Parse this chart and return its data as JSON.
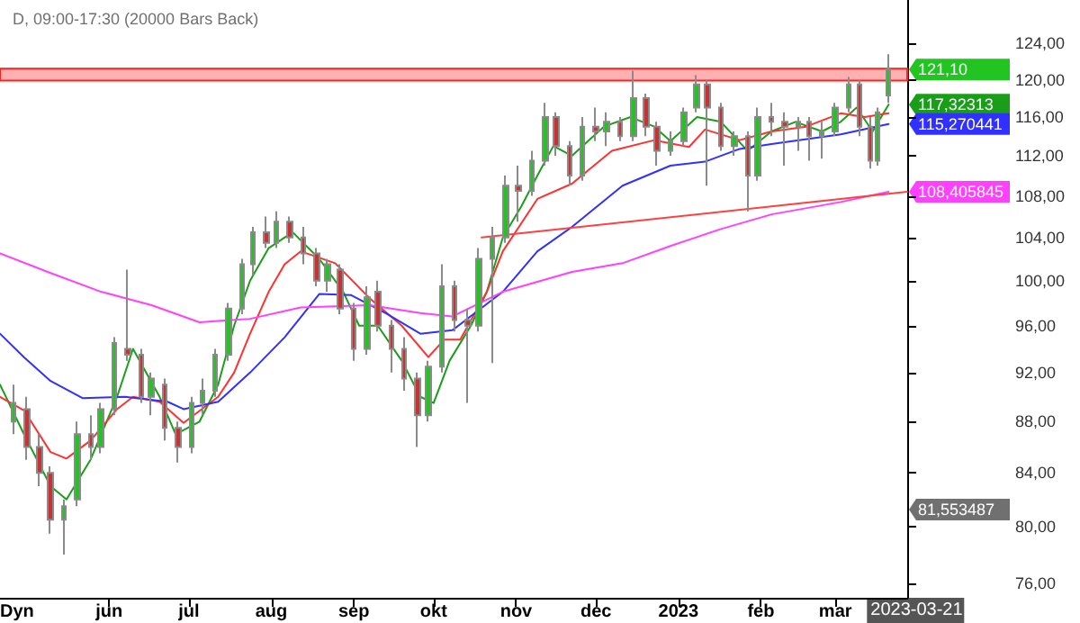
{
  "chart_data": {
    "type": "candlestick",
    "title": "D, 09:00-17:30 (20000 Bars Back)",
    "log": true,
    "marker": "none",
    "x": [
      "2022-04-26",
      "2022-05-01",
      "2022-05-06",
      "2022-05-10",
      "2022-05-15",
      "2022-05-20",
      "2022-05-25",
      "2022-05-29",
      "2022-06-03",
      "2022-06-08",
      "2022-06-13",
      "2022-06-17",
      "2022-06-22",
      "2022-06-27",
      "2022-07-02",
      "2022-07-06",
      "2022-07-11",
      "2022-07-16",
      "2022-07-21",
      "2022-07-25",
      "2022-07-30",
      "2022-08-03",
      "2022-08-08",
      "2022-08-13",
      "2022-08-18",
      "2022-08-22",
      "2022-08-27",
      "2022-09-01",
      "2022-09-06",
      "2022-09-10",
      "2022-09-15",
      "2022-09-20",
      "2022-09-25",
      "2022-09-29",
      "2022-10-04",
      "2022-10-09",
      "2022-10-14",
      "2022-10-18",
      "2022-10-23",
      "2022-10-28",
      "2022-11-02",
      "2022-11-07",
      "2022-11-12",
      "2022-11-16",
      "2022-11-21",
      "2022-11-26",
      "2022-12-01",
      "2022-12-05",
      "2022-12-10",
      "2022-12-15",
      "2022-12-20",
      "2022-12-24",
      "2022-12-29",
      "2023-01-03",
      "2023-01-08",
      "2023-01-12",
      "2023-01-17",
      "2023-01-22",
      "2023-01-27",
      "2023-01-31",
      "2023-02-05",
      "2023-02-10",
      "2023-02-15",
      "2023-02-19",
      "2023-02-24",
      "2023-03-01",
      "2023-03-06",
      "2023-03-10",
      "2023-03-14",
      "2023-03-17",
      "2023-03-21"
    ],
    "ohlc": [
      [
        88,
        91,
        87,
        89.5
      ],
      [
        89,
        90,
        85,
        86
      ],
      [
        86,
        87,
        83,
        84
      ],
      [
        84,
        84.5,
        79.5,
        80.5
      ],
      [
        80.5,
        82,
        78,
        81.5
      ],
      [
        82,
        88,
        81.5,
        87
      ],
      [
        87,
        88.5,
        85,
        86
      ],
      [
        86,
        89.5,
        85.5,
        89
      ],
      [
        89,
        95,
        88.5,
        94.5
      ],
      [
        94,
        101,
        93,
        93.5
      ],
      [
        93.5,
        94,
        89.5,
        90
      ],
      [
        90,
        92,
        88.5,
        91.5
      ],
      [
        91,
        91.5,
        86.5,
        87.5
      ],
      [
        87.5,
        88,
        84.8,
        86
      ],
      [
        86,
        90,
        85.5,
        89.5
      ],
      [
        89.5,
        91.5,
        88.5,
        90.5
      ],
      [
        90.5,
        94,
        90,
        93.5
      ],
      [
        93.5,
        98,
        93,
        97.5
      ],
      [
        97.5,
        102,
        97,
        101.5
      ],
      [
        101.5,
        105,
        100.5,
        104.5
      ],
      [
        104.5,
        106,
        103,
        103.5
      ],
      [
        103.5,
        106.5,
        103,
        105.5
      ],
      [
        105.5,
        106,
        103.5,
        104
      ],
      [
        104,
        105,
        101.5,
        102.5
      ],
      [
        102.5,
        103,
        99.5,
        100
      ],
      [
        100,
        102,
        99,
        101.5
      ],
      [
        101,
        101.5,
        97,
        97.5
      ],
      [
        97.5,
        98,
        93,
        94
      ],
      [
        94,
        99.5,
        93.5,
        98.5
      ],
      [
        99,
        100,
        95.5,
        96
      ],
      [
        96,
        96.5,
        92,
        94
      ],
      [
        94,
        95,
        90.5,
        91.5
      ],
      [
        91.5,
        92,
        86,
        88.5
      ],
      [
        88.5,
        93,
        88,
        92.5
      ],
      [
        92.5,
        101.5,
        92,
        99.5
      ],
      [
        99.5,
        100,
        95.5,
        96.5
      ],
      [
        96.5,
        97.5,
        89.5,
        96
      ],
      [
        96,
        103,
        95.5,
        102
      ],
      [
        102,
        105,
        92.8,
        104
      ],
      [
        104,
        110,
        103.5,
        109
      ],
      [
        109,
        111,
        105.5,
        108.5
      ],
      [
        108.5,
        112.5,
        108,
        111.5
      ],
      [
        111.5,
        117.5,
        111,
        116
      ],
      [
        116,
        116.5,
        112,
        113
      ],
      [
        113,
        113.5,
        109,
        110
      ],
      [
        110,
        116,
        109.5,
        115
      ],
      [
        115,
        117,
        113.5,
        114.5
      ],
      [
        114.5,
        116.5,
        113,
        115.5
      ],
      [
        115.5,
        116,
        113.5,
        114
      ],
      [
        114,
        121,
        113.5,
        118
      ],
      [
        118,
        118.5,
        114,
        115
      ],
      [
        115,
        115.5,
        111,
        112.5
      ],
      [
        112.5,
        114.5,
        112,
        113.5
      ],
      [
        113.5,
        117,
        113,
        116.5
      ],
      [
        117,
        120.5,
        116.5,
        119.5
      ],
      [
        119.5,
        120,
        109,
        117
      ],
      [
        117,
        117.5,
        112.5,
        113
      ],
      [
        113,
        114.5,
        112,
        114
      ],
      [
        114,
        114.5,
        106.5,
        110
      ],
      [
        110,
        117,
        109.5,
        116
      ],
      [
        116,
        117.5,
        114,
        115.5
      ],
      [
        115.5,
        116.5,
        111,
        115
      ],
      [
        115,
        116,
        112.5,
        115.5
      ],
      [
        115.5,
        116,
        111.5,
        114
      ],
      [
        114,
        115.5,
        111.7,
        114.5
      ],
      [
        114.5,
        117.5,
        114,
        117
      ],
      [
        117,
        120.3,
        116.5,
        119.5
      ],
      [
        119.5,
        120,
        114,
        115
      ],
      [
        115,
        116,
        110.7,
        111.5
      ],
      [
        111.5,
        117,
        111,
        116.5
      ],
      [
        118.3,
        122.8,
        117.5,
        121.1
      ]
    ],
    "colors": [
      "#22c422",
      "#c83232",
      "#c83232",
      "#c83232",
      "#22c422",
      "#22c422",
      "#c83232",
      "#22c422",
      "#22c422",
      "#c83232",
      "#c83232",
      "#22c422",
      "#c83232",
      "#c83232",
      "#22c422",
      "#22c422",
      "#22c422",
      "#22c422",
      "#22c422",
      "#22c422",
      "#c83232",
      "#22c422",
      "#c83232",
      "#c83232",
      "#c83232",
      "#22c422",
      "#c83232",
      "#c83232",
      "#22c422",
      "#c83232",
      "#c83232",
      "#c83232",
      "#c83232",
      "#22c422",
      "#22c422",
      "#c83232",
      "#c83232",
      "#22c422",
      "#22c422",
      "#22c422",
      "#c83232",
      "#22c422",
      "#22c422",
      "#c83232",
      "#c83232",
      "#22c422",
      "#c83232",
      "#22c422",
      "#c83232",
      "#22c422",
      "#c83232",
      "#c83232",
      "#22c422",
      "#22c422",
      "#22c422",
      "#c83232",
      "#c83232",
      "#22c422",
      "#c83232",
      "#22c422",
      "#c83232",
      "#c83232",
      "#22c422",
      "#c83232",
      "#22c422",
      "#22c422",
      "#22c422",
      "#c83232",
      "#c83232",
      "#22c422",
      "#22c422"
    ],
    "series": [
      {
        "type": "line",
        "color": "#1a9e1a",
        "x": [
          "2022-04-21",
          "2022-04-30",
          "2022-05-10",
          "2022-05-16",
          "2022-05-25",
          "2022-06-04",
          "2022-06-10",
          "2022-06-20",
          "2022-06-26",
          "2022-07-05",
          "2022-07-12",
          "2022-07-18",
          "2022-07-24",
          "2022-07-31",
          "2022-08-09",
          "2022-08-19",
          "2022-08-28",
          "2022-09-03",
          "2022-09-10",
          "2022-09-19",
          "2022-09-26",
          "2022-10-01",
          "2022-10-07",
          "2022-10-15",
          "2022-10-21",
          "2022-10-27",
          "2022-11-03",
          "2022-11-09",
          "2022-11-15",
          "2022-11-22",
          "2022-11-28",
          "2022-12-04",
          "2022-12-14",
          "2022-12-23",
          "2022-12-29",
          "2023-01-08",
          "2023-01-17",
          "2023-01-27",
          "2023-02-05",
          "2023-02-14",
          "2023-02-24",
          "2023-03-03",
          "2023-03-09",
          "2023-03-15",
          "2023-03-21"
        ],
        "values": [
          91,
          87,
          83,
          82,
          85,
          90,
          94,
          90,
          87,
          88,
          91,
          96,
          100,
          103,
          104.5,
          102,
          99,
          96,
          96,
          93,
          90,
          89.5,
          93,
          96,
          99,
          104,
          107,
          110,
          113,
          112,
          113.5,
          115,
          116,
          115,
          113.5,
          116,
          115.5,
          112.5,
          114.5,
          115.5,
          114.5,
          115.5,
          117,
          114.5,
          117.32313
        ]
      },
      {
        "type": "line",
        "color": "#ff3030",
        "x": [
          "2022-04-21",
          "2022-04-30",
          "2022-05-10",
          "2022-05-16",
          "2022-05-25",
          "2022-06-04",
          "2022-06-10",
          "2022-06-20",
          "2022-06-29",
          "2022-07-12",
          "2022-07-18",
          "2022-07-24",
          "2022-07-31",
          "2022-08-06",
          "2022-08-12",
          "2022-08-25",
          "2022-09-07",
          "2022-09-19",
          "2022-09-29",
          "2022-10-05",
          "2022-10-11",
          "2022-10-21",
          "2022-10-27",
          "2022-11-09",
          "2022-11-22",
          "2022-12-07",
          "2022-12-23",
          "2023-01-05",
          "2023-01-11",
          "2023-01-24",
          "2023-02-05",
          "2023-02-18",
          "2023-03-03",
          "2023-03-12",
          "2023-03-21"
        ],
        "values": [
          90,
          88.9,
          85.6,
          85.1,
          86.5,
          89,
          90,
          89.6,
          87.9,
          90,
          92,
          95.3,
          99,
          101.5,
          102.7,
          101.6,
          98.4,
          96,
          93.3,
          94.8,
          94.8,
          99,
          102.7,
          107.7,
          109.2,
          112.5,
          113.6,
          112.9,
          114.7,
          113.6,
          114.5,
          115,
          116.4,
          116,
          116.4
        ]
      },
      {
        "type": "line",
        "color": "#3030ff",
        "x": [
          "2022-04-21",
          "2022-04-30",
          "2022-05-10",
          "2022-05-22",
          "2022-06-07",
          "2022-06-23",
          "2022-06-29",
          "2022-07-12",
          "2022-07-24",
          "2022-08-06",
          "2022-08-19",
          "2022-08-31",
          "2022-09-13",
          "2022-09-26",
          "2022-10-08",
          "2022-10-27",
          "2022-11-09",
          "2022-11-22",
          "2022-12-11",
          "2022-12-29",
          "2023-01-11",
          "2023-01-24",
          "2023-02-05",
          "2023-03-03",
          "2023-03-21"
        ],
        "values": [
          95.3,
          93.3,
          91.3,
          89.9,
          90,
          89.6,
          89,
          89.6,
          92,
          95,
          98.8,
          98.7,
          97.1,
          95.3,
          95.6,
          99,
          102.7,
          105,
          109,
          111,
          111.4,
          112.7,
          113.2,
          114.2,
          115.270441
        ]
      },
      {
        "type": "line",
        "color": "#ff40ff",
        "x": [
          "2022-04-21",
          "2022-05-10",
          "2022-05-29",
          "2022-06-17",
          "2022-07-05",
          "2022-07-24",
          "2022-08-12",
          "2022-09-07",
          "2022-09-26",
          "2022-10-08",
          "2022-10-27",
          "2022-11-22",
          "2022-12-11",
          "2022-12-29",
          "2023-01-17",
          "2023-02-05",
          "2023-03-03",
          "2023-03-21"
        ],
        "values": [
          102.5,
          100.7,
          99,
          97.8,
          96.3,
          96.6,
          97.6,
          97.8,
          97.1,
          96.8,
          99,
          100.8,
          101.6,
          103.2,
          104.8,
          106.2,
          107.4,
          108.405845
        ]
      },
      {
        "type": "line",
        "color": "#ff4040",
        "x": [
          "2022-10-19",
          "2023-03-28"
        ],
        "values": [
          104,
          108.4
        ]
      }
    ],
    "bands": [
      {
        "axis": "y",
        "from": 119.9,
        "to": 121.2,
        "color": "#ffb0b0"
      }
    ],
    "annotations": [
      {
        "text": "121,10",
        "x": "2023-03-21",
        "y": 121.1
      },
      {
        "text": "117,32313",
        "x": "2023-03-21",
        "y": 117.32313
      },
      {
        "text": "115,270441",
        "x": "2023-03-21",
        "y": 115.270441
      },
      {
        "text": "108,405845",
        "x": "2023-03-21",
        "y": 108.405845
      },
      "81,553487",
      "2023-03-21",
      "Dyn"
    ],
    "xlim": [
      "2022-04-21",
      "2023-03-28"
    ],
    "xticks": [
      {
        "value": "2022-06-01",
        "label": "jun"
      },
      {
        "value": "2022-07-01",
        "label": "jul"
      },
      {
        "value": "2022-08-01",
        "label": "aug"
      },
      {
        "value": "2022-09-01",
        "label": "sep"
      },
      {
        "value": "2022-10-01",
        "label": "okt"
      },
      {
        "value": "2022-11-01",
        "label": "nov"
      },
      {
        "value": "2022-12-01",
        "label": "dec"
      },
      {
        "value": "2023-01-01",
        "label": "2023"
      },
      {
        "value": "2023-02-01",
        "label": "feb"
      },
      {
        "value": "2023-03-01",
        "label": "mar"
      }
    ],
    "ylim": [
      75,
      129
    ],
    "yticks": [
      {
        "value": 76,
        "label": "76,00"
      },
      {
        "value": 80,
        "label": "80,00"
      },
      {
        "value": 84,
        "label": "84,00"
      },
      {
        "value": 88,
        "label": "88,00"
      },
      {
        "value": 92,
        "label": "92,00"
      },
      {
        "value": 96,
        "label": "96,00"
      },
      {
        "value": 100,
        "label": "100,00"
      },
      {
        "value": 104,
        "label": "104,00"
      },
      {
        "value": 108,
        "label": "108,00"
      },
      {
        "value": 112,
        "label": "112,00"
      },
      {
        "value": 116,
        "label": "116,00"
      },
      {
        "value": 120,
        "label": "120,00"
      },
      {
        "value": 124,
        "label": "124,00"
      }
    ]
  }
}
